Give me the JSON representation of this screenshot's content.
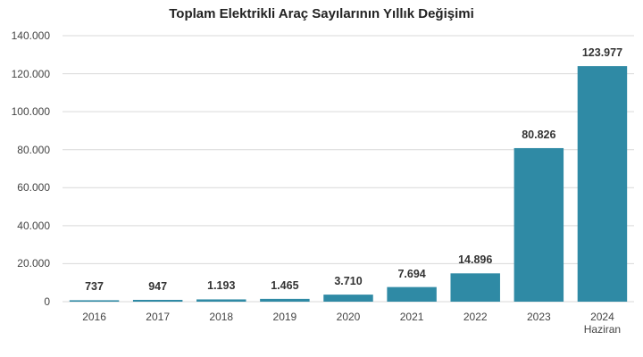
{
  "chart_data": {
    "type": "bar",
    "title": "Toplam Elektrikli Araç Sayılarının Yıllık Değişimi",
    "categories": [
      "2016",
      "2017",
      "2018",
      "2019",
      "2020",
      "2021",
      "2022",
      "2023",
      "2024\nHaziran"
    ],
    "values": [
      737,
      947,
      1193,
      1465,
      3710,
      7694,
      14896,
      80826,
      123977
    ],
    "value_labels": [
      "737",
      "947",
      "1.193",
      "1.465",
      "3.710",
      "7.694",
      "14.896",
      "80.826",
      "123.977"
    ],
    "color": "#2f8aa5",
    "ylim": [
      0,
      140000
    ],
    "yticks": [
      0,
      {
        "value": 20000,
        "label": "20.000"
      },
      {
        "value": 40000,
        "label": "40.000"
      },
      {
        "value": 60000,
        "label": "60.000"
      },
      {
        "value": 80000,
        "label": "80.000"
      },
      {
        "value": 100000,
        "label": "100.000"
      },
      {
        "value": 120000,
        "label": "120.000"
      },
      {
        "value": 140000,
        "label": "140.000"
      }
    ],
    "grid": true
  }
}
